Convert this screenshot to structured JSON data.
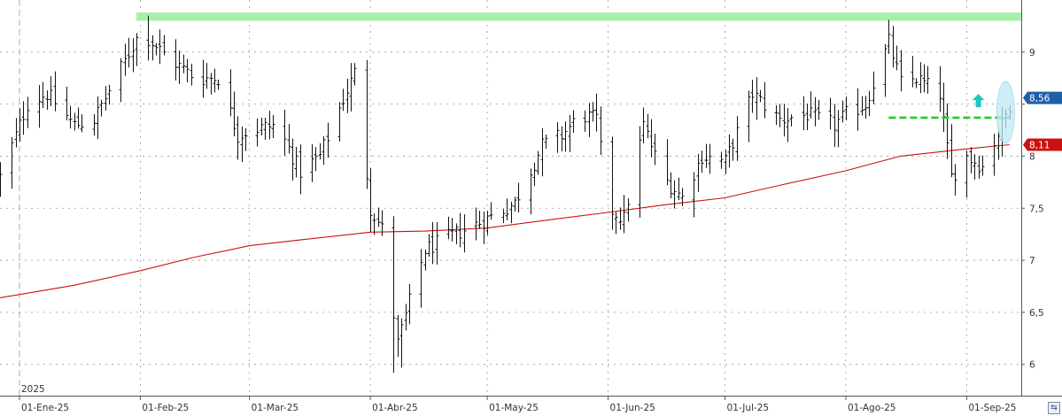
{
  "chart_data": {
    "type": "ohlc",
    "year_label": "2025",
    "x_labels": [
      {
        "date": "2025-01-01",
        "label": "01-Ene-25"
      },
      {
        "date": "2025-02-01",
        "label": "01-Feb-25"
      },
      {
        "date": "2025-03-01",
        "label": "01-Mar-25"
      },
      {
        "date": "2025-04-01",
        "label": "01-Abr-25"
      },
      {
        "date": "2025-05-01",
        "label": "01-May-25"
      },
      {
        "date": "2025-06-01",
        "label": "01-Jun-25"
      },
      {
        "date": "2025-07-01",
        "label": "01-Jul-25"
      },
      {
        "date": "2025-08-01",
        "label": "01-Ago-25"
      },
      {
        "date": "2025-09-01",
        "label": "01-Sep-25"
      }
    ],
    "y_ticks": [
      6,
      6.5,
      7,
      7.5,
      8,
      8.5,
      9
    ],
    "y_tick_labels": [
      "6",
      "6,5",
      "7",
      "7,5",
      "8",
      "",
      "9"
    ],
    "ylim": [
      5.7,
      9.5
    ],
    "xlim": [
      "2024-12-27",
      "2025-09-15"
    ],
    "grid": true,
    "last_price": {
      "value": 8.56,
      "label": "8,56",
      "color": "#1f5fa8"
    },
    "moving_average": {
      "value": 8.11,
      "label": "8,11",
      "color": "#cc1111",
      "points": [
        [
          "2024-12-27",
          6.64
        ],
        [
          "2025-01-15",
          6.76
        ],
        [
          "2025-02-01",
          6.9
        ],
        [
          "2025-02-15",
          7.03
        ],
        [
          "2025-03-01",
          7.14
        ],
        [
          "2025-03-15",
          7.2
        ],
        [
          "2025-04-01",
          7.27
        ],
        [
          "2025-04-15",
          7.28
        ],
        [
          "2025-05-01",
          7.31
        ],
        [
          "2025-05-15",
          7.38
        ],
        [
          "2025-06-01",
          7.46
        ],
        [
          "2025-06-15",
          7.53
        ],
        [
          "2025-07-01",
          7.6
        ],
        [
          "2025-07-15",
          7.72
        ],
        [
          "2025-08-01",
          7.86
        ],
        [
          "2025-08-15",
          8.0
        ],
        [
          "2025-09-01",
          8.07
        ],
        [
          "2025-09-12",
          8.11
        ]
      ]
    },
    "annotations": {
      "resistance_band": {
        "y": [
          9.3,
          9.38
        ],
        "from": "2025-01-31",
        "to": "2025-09-15",
        "color": "#a8f0a8"
      },
      "breakout_line": {
        "y": 8.37,
        "from": "2025-08-12",
        "to": "2025-09-12",
        "color": "#22cc22"
      },
      "arrow": {
        "date": "2025-09-04",
        "y": 8.53,
        "direction": "up",
        "color": "#22c3c3"
      },
      "highlight_ellipse": {
        "date": "2025-09-11",
        "y": 8.42,
        "color": "#bfe8f5"
      }
    },
    "anchors": [
      [
        "2024-12-27",
        7.8
      ],
      [
        "2025-01-03",
        8.5
      ],
      [
        "2025-01-08",
        8.6
      ],
      [
        "2025-01-15",
        8.3
      ],
      [
        "2025-01-20",
        8.35
      ],
      [
        "2025-01-25",
        8.7
      ],
      [
        "2025-02-01",
        9.2
      ],
      [
        "2025-02-08",
        8.95
      ],
      [
        "2025-02-15",
        8.75
      ],
      [
        "2025-02-21",
        8.75
      ],
      [
        "2025-02-26",
        8.2
      ],
      [
        "2025-03-01",
        8.25
      ],
      [
        "2025-03-08",
        8.3
      ],
      [
        "2025-03-14",
        7.85
      ],
      [
        "2025-03-19",
        8.0
      ],
      [
        "2025-03-25",
        8.55
      ],
      [
        "2025-03-28",
        8.8
      ],
      [
        "2025-04-01",
        7.5
      ],
      [
        "2025-04-04",
        7.3
      ],
      [
        "2025-04-08",
        6.2
      ],
      [
        "2025-04-11",
        6.6
      ],
      [
        "2025-04-15",
        7.1
      ],
      [
        "2025-04-20",
        7.2
      ],
      [
        "2025-05-01",
        7.4
      ],
      [
        "2025-05-08",
        7.55
      ],
      [
        "2025-05-15",
        8.1
      ],
      [
        "2025-05-20",
        8.2
      ],
      [
        "2025-05-25",
        8.4
      ],
      [
        "2025-05-29",
        8.35
      ],
      [
        "2025-06-01",
        7.5
      ],
      [
        "2025-06-05",
        7.4
      ],
      [
        "2025-06-10",
        8.3
      ],
      [
        "2025-06-15",
        7.8
      ],
      [
        "2025-06-20",
        7.6
      ],
      [
        "2025-06-25",
        8.0
      ],
      [
        "2025-07-01",
        7.95
      ],
      [
        "2025-07-08",
        8.6
      ],
      [
        "2025-07-15",
        8.35
      ],
      [
        "2025-07-22",
        8.4
      ],
      [
        "2025-07-29",
        8.3
      ],
      [
        "2025-08-01",
        8.4
      ],
      [
        "2025-08-06",
        8.5
      ],
      [
        "2025-08-12",
        9.1
      ],
      [
        "2025-08-15",
        8.7
      ],
      [
        "2025-08-19",
        8.75
      ],
      [
        "2025-08-25",
        8.6
      ],
      [
        "2025-08-28",
        7.8
      ],
      [
        "2025-09-01",
        8.0
      ],
      [
        "2025-09-05",
        7.9
      ],
      [
        "2025-09-10",
        8.3
      ],
      [
        "2025-09-12",
        8.5
      ]
    ],
    "lows": [
      [
        "2025-04-07",
        5.92
      ],
      [
        "2025-04-09",
        5.97
      ],
      [
        "2025-08-29",
        7.62
      ]
    ],
    "highs": [
      [
        "2025-02-03",
        9.35
      ],
      [
        "2025-08-13",
        9.25
      ]
    ]
  }
}
